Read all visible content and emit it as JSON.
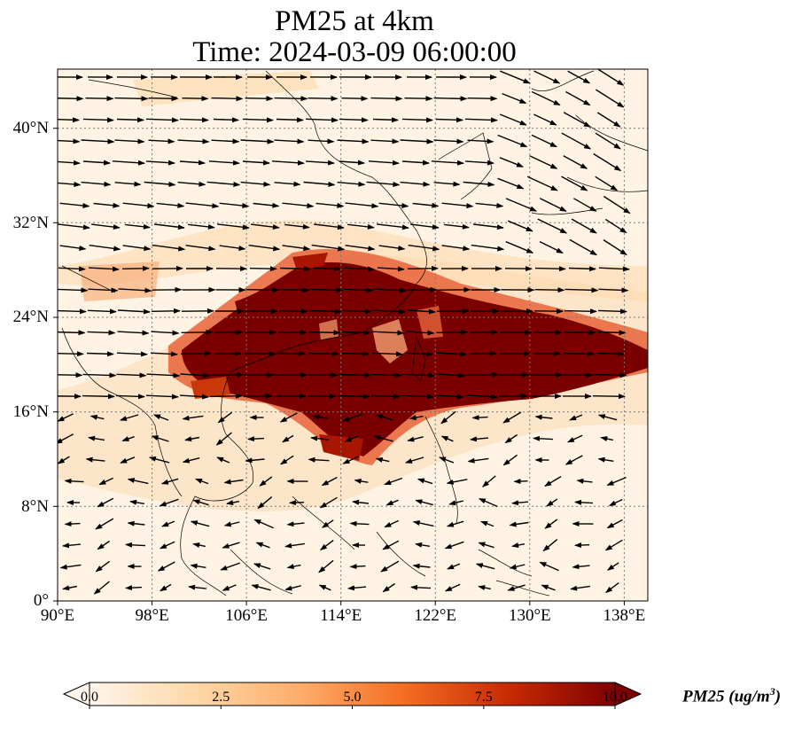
{
  "title": {
    "line1": "PM25 at 4km",
    "line2": "Time: 2024-03-09 06:00:00"
  },
  "map": {
    "lon_range": [
      90,
      140
    ],
    "lat_range": [
      0,
      45
    ],
    "lon_ticks": [
      "90°E",
      "98°E",
      "106°E",
      "114°E",
      "122°E",
      "130°E",
      "138°E"
    ],
    "lat_ticks": [
      "0°",
      "8°N",
      "16°N",
      "24°N",
      "32°N",
      "40°N"
    ],
    "gridlines": true,
    "coastlines": true,
    "wind_vectors": true,
    "plume_color": "#7a0000",
    "background_color": "#fff5eb"
  },
  "colorbar": {
    "ticks": [
      "0.0",
      "2.5",
      "5.0",
      "7.5",
      "10.0"
    ],
    "label": "PM25 (ug/m",
    "label_sup": "3",
    "label_end": ")",
    "colors": [
      "#fff5eb",
      "#fdd8a8",
      "#fdad6b",
      "#f46d23",
      "#c62a04",
      "#7f0000"
    ],
    "extend": "both"
  }
}
